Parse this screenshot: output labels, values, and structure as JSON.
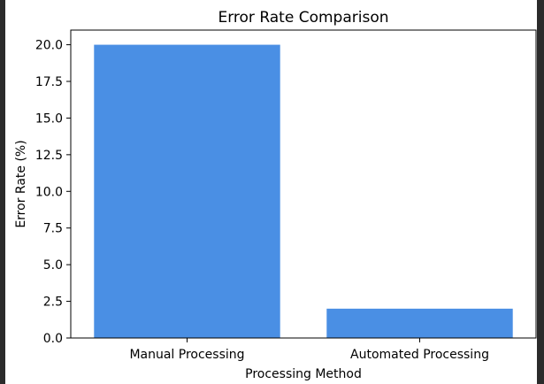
{
  "chart_data": {
    "type": "bar",
    "title": "Error Rate Comparison",
    "xlabel": "Processing Method",
    "ylabel": "Error Rate (%)",
    "categories": [
      "Manual Processing",
      "Automated Processing"
    ],
    "values": [
      20.0,
      2.0
    ],
    "ylim": [
      0,
      21.0
    ],
    "yticks": [
      "0.0",
      "2.5",
      "5.0",
      "7.5",
      "10.0",
      "12.5",
      "15.0",
      "17.5",
      "20.0"
    ],
    "bar_color": "#4a8fe4",
    "grid": false,
    "legend": "none"
  }
}
